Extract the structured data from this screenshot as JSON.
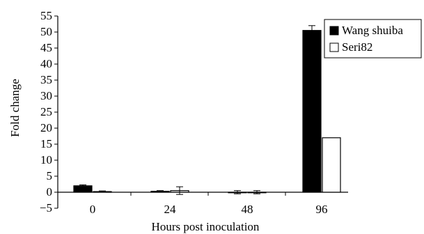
{
  "chart_data": {
    "type": "bar",
    "xlabel": "Hours post inoculation",
    "ylabel": "Fold change",
    "categories": [
      "0",
      "24",
      "48",
      "96"
    ],
    "ylim": [
      -5,
      55
    ],
    "yticks": [
      "−5",
      "0",
      "5",
      "10",
      "15",
      "20",
      "25",
      "30",
      "35",
      "40",
      "45",
      "50",
      "55"
    ],
    "series": [
      {
        "name": "Wang shuiba",
        "fill": "#000000",
        "values": [
          2.0,
          0.3,
          0.0,
          50.5
        ],
        "errors": [
          0.3,
          0.2,
          0.5,
          1.5
        ]
      },
      {
        "name": "Seri82",
        "fill": "#ffffff",
        "values": [
          0.2,
          0.5,
          0.0,
          17.0
        ],
        "errors": [
          0.2,
          1.2,
          0.5,
          0.0
        ]
      }
    ],
    "legend_position": "top-right",
    "grid": false
  }
}
